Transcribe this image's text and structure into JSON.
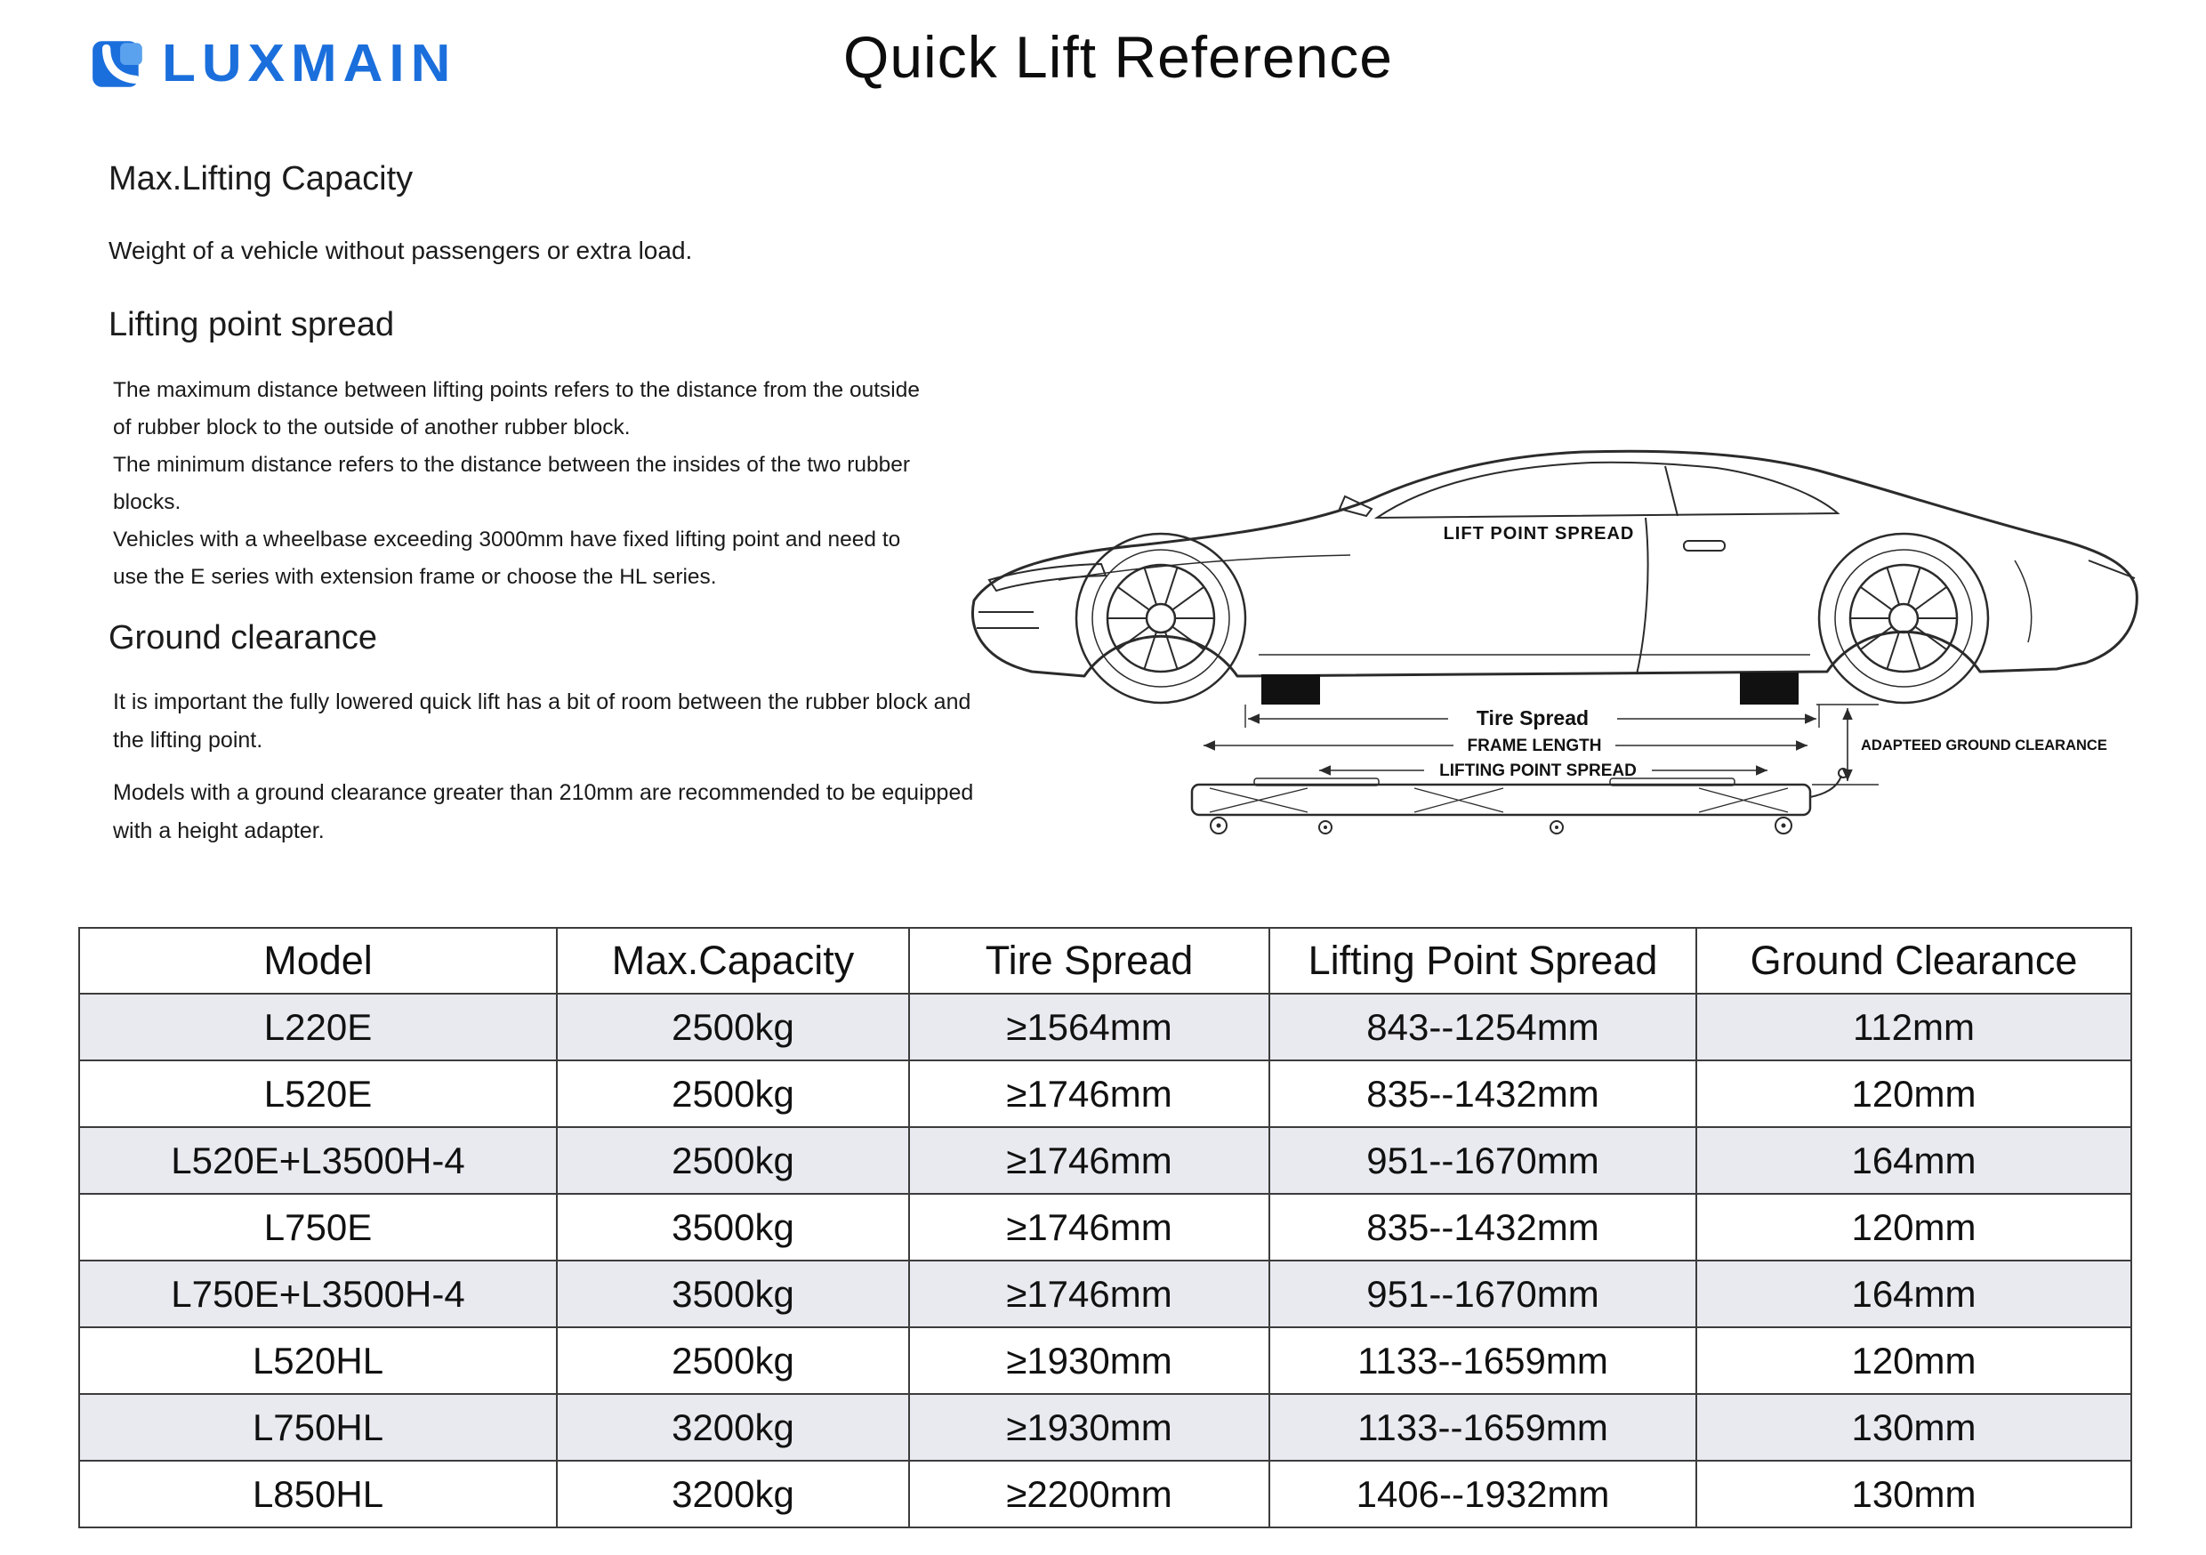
{
  "header": {
    "brand": "LUXMAIN",
    "title": "Quick Lift Reference"
  },
  "colors": {
    "brand_blue": "#1b6fdc",
    "table_alt_row": "#e9e9f0",
    "line_color": "#2b2b2b"
  },
  "sections": [
    {
      "heading": "Max.Lifting Capacity",
      "paragraphs": [
        "Weight of a vehicle without passengers or extra load."
      ]
    },
    {
      "heading": "Lifting point spread",
      "paragraphs": [
        "The maximum distance between lifting points refers to the distance from the outside of rubber block to the outside of another rubber block.",
        "The minimum distance refers to the distance between the insides of the two rubber blocks.",
        "Vehicles with a wheelbase exceeding 3000mm have fixed lifting point and need to use the E series with extension frame or choose the HL series."
      ]
    },
    {
      "heading": "Ground clearance",
      "paragraphs": [
        "It is important the fully lowered quick lift has a bit of room between the rubber block and the lifting point.",
        "Models with a ground clearance greater than 210mm are recommended to be equipped with a height adapter."
      ]
    }
  ],
  "diagram": {
    "labels": {
      "lift_point_spread": "LIFT POINT SPREAD",
      "tire_spread": "Tire Spread",
      "frame_length": "FRAME LENGTH",
      "lifting_point_spread": "LIFTING POINT SPREAD",
      "adapted_ground_clearance": "ADAPTEED GROUND CLEARANCE"
    }
  },
  "table": {
    "headers": [
      "Model",
      "Max.Capacity",
      "Tire Spread",
      "Lifting Point Spread",
      "Ground Clearance"
    ],
    "rows": [
      [
        "L220E",
        "2500kg",
        "≥1564mm",
        "843--1254mm",
        "112mm"
      ],
      [
        "L520E",
        "2500kg",
        "≥1746mm",
        "835--1432mm",
        "120mm"
      ],
      [
        "L520E+L3500H-4",
        "2500kg",
        "≥1746mm",
        "951--1670mm",
        "164mm"
      ],
      [
        "L750E",
        "3500kg",
        "≥1746mm",
        "835--1432mm",
        "120mm"
      ],
      [
        "L750E+L3500H-4",
        "3500kg",
        "≥1746mm",
        "951--1670mm",
        "164mm"
      ],
      [
        "L520HL",
        "2500kg",
        "≥1930mm",
        "1133--1659mm",
        "120mm"
      ],
      [
        "L750HL",
        "3200kg",
        "≥1930mm",
        "1133--1659mm",
        "130mm"
      ],
      [
        "L850HL",
        "3200kg",
        "≥2200mm",
        "1406--1932mm",
        "130mm"
      ]
    ]
  }
}
